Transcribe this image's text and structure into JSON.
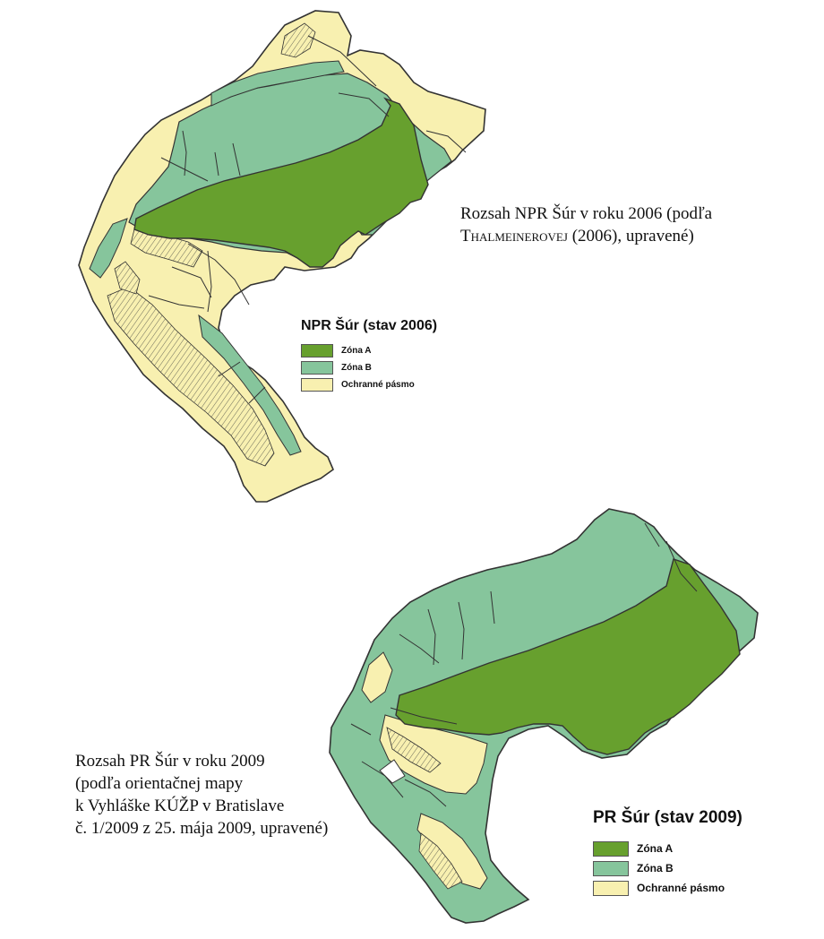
{
  "colors": {
    "zona_a": "#67a02e",
    "zona_b": "#86c59c",
    "ochranne_pasmo": "#f8f0b0",
    "boundary": "#333333"
  },
  "map_2006": {
    "caption_line1": "Rozsah NPR Šúr v roku 2006 (podľa",
    "caption_line2_author": "Thalmeinerovej",
    "caption_line2_rest": " (2006), upravené)",
    "legend": {
      "title": "NPR Šúr (stav 2006)",
      "items": [
        {
          "label": "Zóna A",
          "color": "#67a02e"
        },
        {
          "label": "Zóna B",
          "color": "#86c59c"
        },
        {
          "label": "Ochranné pásmo",
          "color": "#f8f0b0"
        }
      ]
    }
  },
  "map_2009": {
    "caption_lines": [
      "Rozsah PR Šúr v roku 2009",
      "(podľa orientačnej mapy",
      "k Vyhláške KÚŽP v Bratislave",
      "č. 1/2009 z 25. mája 2009, upravené)"
    ],
    "legend": {
      "title": "PR Šúr (stav 2009)",
      "items": [
        {
          "label": "Zóna A",
          "color": "#67a02e"
        },
        {
          "label": "Zóna B",
          "color": "#86c59c"
        },
        {
          "label": "Ochranné pásmo",
          "color": "#f8f0b0"
        }
      ]
    }
  }
}
